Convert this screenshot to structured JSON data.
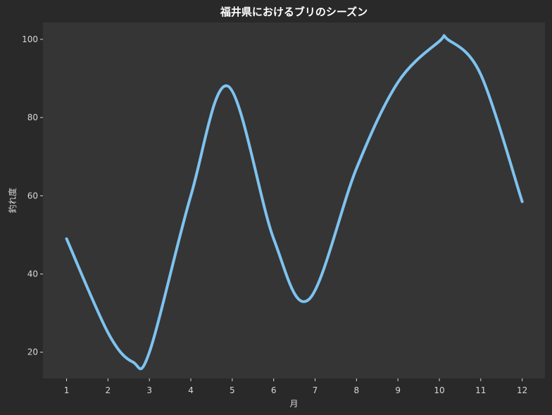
{
  "chart_data": {
    "type": "line",
    "title": "福井県におけるブリのシーズン",
    "xlabel": "月",
    "ylabel": "釣れ度",
    "x": [
      1,
      2,
      2.6,
      3,
      4,
      4.9,
      6,
      6.85,
      8,
      9,
      10,
      10.2,
      11,
      12
    ],
    "series": [
      {
        "values": [
          49,
          25,
          17.5,
          20,
          60,
          88,
          49,
          33.5,
          67,
          89,
          99.5,
          100,
          91,
          58.5
        ],
        "color": "#7ec3f0"
      }
    ],
    "x_ticks": [
      "1",
      "2",
      "3",
      "4",
      "5",
      "6",
      "7",
      "8",
      "9",
      "10",
      "11",
      "12"
    ],
    "y_ticks": [
      "20",
      "40",
      "60",
      "80",
      "100"
    ],
    "xlim": [
      0.43,
      12.55
    ],
    "ylim": [
      13.3,
      104.3
    ],
    "grid": false,
    "colors": {
      "background": "#292929",
      "plot_background": "#353535",
      "line": "#7ec3f0",
      "text": "#d8d8d8",
      "title": "#ffffff"
    }
  }
}
